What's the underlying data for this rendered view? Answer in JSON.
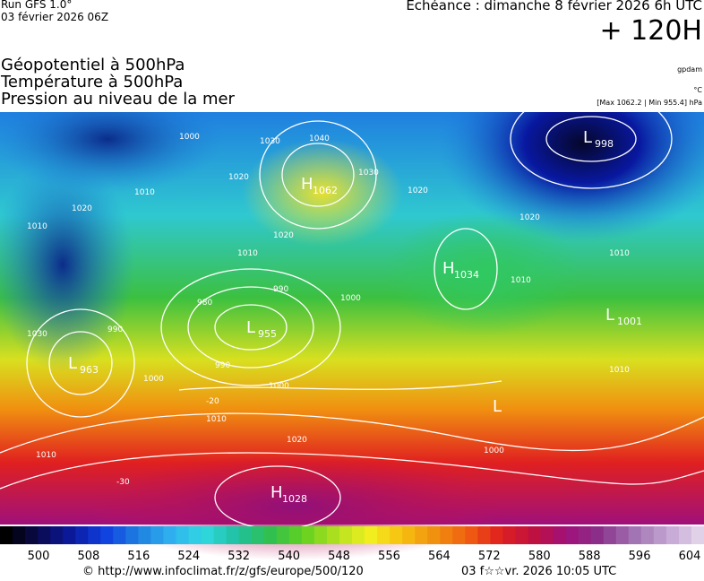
{
  "header": {
    "run": "Run GFS 1.0°",
    "run_date": "03 février 2026 06Z",
    "valid": "Echéance : dimanche 8 février 2026 6h UTC",
    "lead": "+ 120H",
    "layers": [
      "Géopotentiel à 500hPa",
      "Température à 500hPa",
      "Pression au niveau de la mer"
    ],
    "unit_geopotential": "gpdam",
    "unit_temperature": "°C",
    "pressure_range": "[Max 1062.2 | Min 955.4] hPa"
  },
  "map": {
    "centers": [
      {
        "letter": "H",
        "value": "1062"
      },
      {
        "letter": "L",
        "value": "998"
      },
      {
        "letter": "H",
        "value": "1034"
      },
      {
        "letter": "L",
        "value": "1001"
      },
      {
        "letter": "L",
        "value": "955"
      },
      {
        "letter": "L",
        "value": "963"
      },
      {
        "letter": "H",
        "value": "1028"
      },
      {
        "letter": "L",
        "value": ""
      }
    ],
    "isobar_labels": [
      "1000",
      "1010",
      "1020",
      "1030",
      "1040",
      "1030",
      "1020",
      "1010",
      "1020",
      "1010",
      "990",
      "980",
      "990",
      "1000",
      "1000",
      "990",
      "1000",
      "1010",
      "1020",
      "1010",
      "1010",
      "1020",
      "1010",
      "1030",
      "1020",
      "1010",
      "1000",
      "-20",
      "-30"
    ]
  },
  "colorbar": {
    "ticks": [
      "500",
      "508",
      "516",
      "524",
      "532",
      "540",
      "548",
      "556",
      "564",
      "572",
      "580",
      "588",
      "596",
      "604"
    ]
  },
  "footer": {
    "source": "© http://www.infoclimat.fr/z/gfs/europe/500/120",
    "generated": "03 f☆☆vr. 2026 10:05 UTC"
  }
}
